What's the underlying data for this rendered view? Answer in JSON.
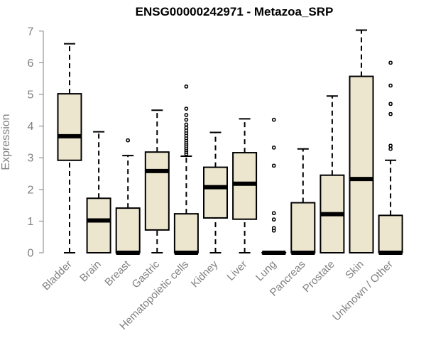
{
  "chart_data": {
    "type": "boxplot",
    "title": "ENSG00000242971 - Metazoa_SRP",
    "xlabel": "",
    "ylabel": "Expression",
    "ylim": [
      0,
      7
    ],
    "yticks": [
      0,
      1,
      2,
      3,
      4,
      5,
      6,
      7
    ],
    "grid": false,
    "colors": {
      "box_fill": "#ede6cf",
      "stroke": "#000000",
      "axis": "#808080",
      "tick_label": "#808080"
    },
    "categories": [
      "Bladder",
      "Brain",
      "Breast",
      "Gastric",
      "Hematopoietic cells",
      "Kidney",
      "Liver",
      "Lung",
      "Pancreas",
      "Prostate",
      "Skin",
      "Unknown / Other"
    ],
    "boxes": [
      {
        "name": "Bladder",
        "whisker_low": 0,
        "q1": 2.92,
        "median": 3.68,
        "q3": 5.02,
        "whisker_high": 6.6,
        "outliers": []
      },
      {
        "name": "Brain",
        "whisker_low": 0,
        "q1": 0,
        "median": 1.02,
        "q3": 1.72,
        "whisker_high": 3.82,
        "outliers": []
      },
      {
        "name": "Breast",
        "whisker_low": 0,
        "q1": 0,
        "median": 0,
        "q3": 1.41,
        "whisker_high": 3.07,
        "outliers": [
          3.55
        ]
      },
      {
        "name": "Gastric",
        "whisker_low": 0,
        "q1": 0.72,
        "median": 2.58,
        "q3": 3.18,
        "whisker_high": 4.5,
        "outliers": []
      },
      {
        "name": "Hematopoietic cells",
        "whisker_low": 0,
        "q1": 0,
        "median": 0,
        "q3": 1.23,
        "whisker_high": 3.05,
        "outliers": [
          3.12,
          3.18,
          3.24,
          3.3,
          3.36,
          3.42,
          3.48,
          3.55,
          3.62,
          3.7,
          3.78,
          3.86,
          3.95,
          4.05,
          4.2,
          4.35,
          4.55,
          5.25
        ]
      },
      {
        "name": "Kidney",
        "whisker_low": 0,
        "q1": 1.1,
        "median": 2.07,
        "q3": 2.7,
        "whisker_high": 3.8,
        "outliers": []
      },
      {
        "name": "Liver",
        "whisker_low": 0,
        "q1": 1.06,
        "median": 2.18,
        "q3": 3.16,
        "whisker_high": 4.23,
        "outliers": []
      },
      {
        "name": "Lung",
        "whisker_low": 0,
        "q1": 0,
        "median": 0,
        "q3": 0,
        "whisker_high": 0,
        "outliers": [
          0.7,
          0.78,
          1.05,
          1.25,
          2.75,
          3.32,
          4.2
        ]
      },
      {
        "name": "Pancreas",
        "whisker_low": 0,
        "q1": 0,
        "median": 0,
        "q3": 1.58,
        "whisker_high": 3.28,
        "outliers": []
      },
      {
        "name": "Prostate",
        "whisker_low": 0,
        "q1": 0,
        "median": 1.22,
        "q3": 2.45,
        "whisker_high": 4.95,
        "outliers": []
      },
      {
        "name": "Skin",
        "whisker_low": 0,
        "q1": 0,
        "median": 2.33,
        "q3": 5.57,
        "whisker_high": 7.03,
        "outliers": []
      },
      {
        "name": "Unknown / Other",
        "whisker_low": 0,
        "q1": 0,
        "median": 0,
        "q3": 1.18,
        "whisker_high": 2.92,
        "outliers": [
          3.28,
          3.38,
          4.38,
          4.7,
          5.28,
          6.0
        ]
      }
    ]
  }
}
